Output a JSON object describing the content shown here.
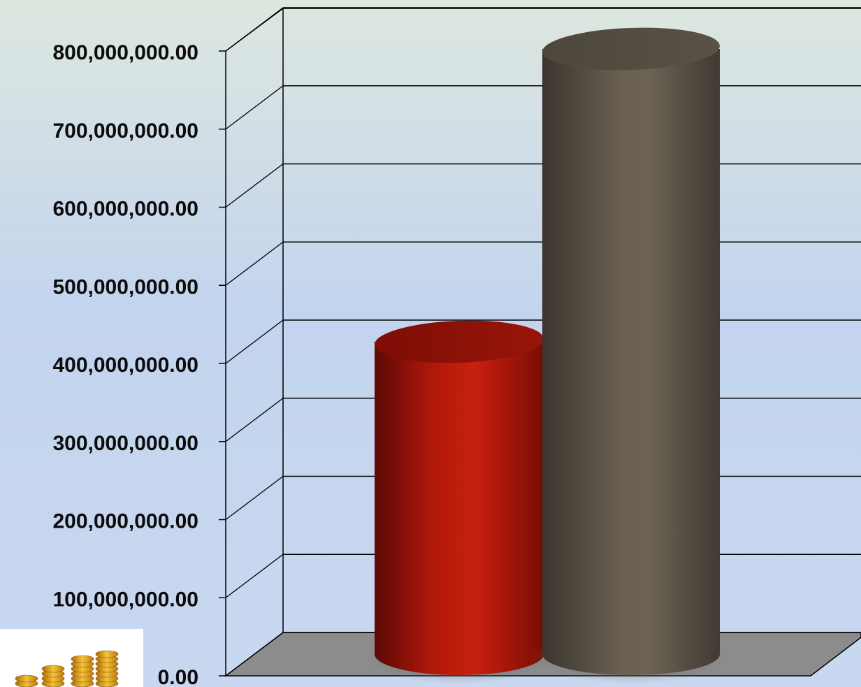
{
  "chart_data": {
    "type": "bar",
    "style": "3d-cylinder",
    "categories": [
      "",
      ""
    ],
    "values": [
      400000000,
      775000000
    ],
    "ylim": [
      0,
      800000000
    ],
    "yticks": [
      {
        "value": 0,
        "label": "0.00"
      },
      {
        "value": 100000000,
        "label": "100,000,000.00"
      },
      {
        "value": 200000000,
        "label": "200,000,000.00"
      },
      {
        "value": 300000000,
        "label": "300,000,000.00"
      },
      {
        "value": 400000000,
        "label": "400,000,000.00"
      },
      {
        "value": 500000000,
        "label": "500,000,000.00"
      },
      {
        "value": 600000000,
        "label": "600,000,000.00"
      },
      {
        "value": 700000000,
        "label": "700,000,000.00"
      },
      {
        "value": 800000000,
        "label": "800,000,000.00"
      }
    ],
    "colors": [
      "#b3150a",
      "#5e5548"
    ],
    "grid": true,
    "legend": "none"
  },
  "decoration": {
    "icon": "gold-coin-stacks-icon"
  }
}
